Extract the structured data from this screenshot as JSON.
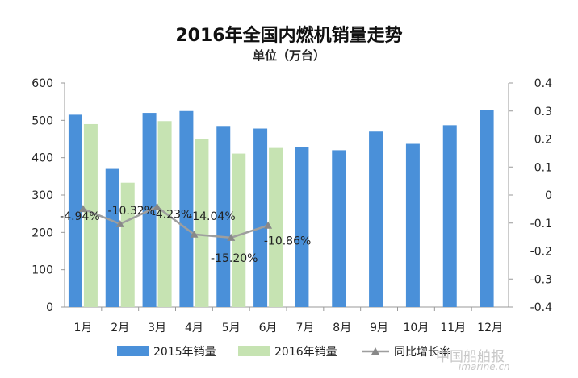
{
  "chart_data": {
    "type": "bar",
    "title": "2016年全国内燃机销量走势",
    "subtitle": "单位（万台）",
    "categories": [
      "1月",
      "2月",
      "3月",
      "4月",
      "5月",
      "6月",
      "7月",
      "8月",
      "9月",
      "10月",
      "11月",
      "12月"
    ],
    "series": [
      {
        "name": "2015年销量",
        "kind": "bar",
        "axis": "left",
        "color": "#4a90d9",
        "values": [
          515,
          370,
          520,
          525,
          485,
          478,
          428,
          420,
          470,
          437,
          487,
          527
        ]
      },
      {
        "name": "2016年销量",
        "kind": "bar",
        "axis": "left",
        "color": "#c6e3b2",
        "values": [
          490,
          333,
          498,
          451,
          411,
          426,
          null,
          null,
          null,
          null,
          null,
          null
        ]
      },
      {
        "name": "同比增长率",
        "kind": "line",
        "axis": "right",
        "color": "#9e9e9e",
        "values": [
          -0.0494,
          -0.1032,
          -0.0423,
          -0.1404,
          -0.152,
          -0.1086,
          null,
          null,
          null,
          null,
          null,
          null
        ],
        "labels": [
          "-4.94%",
          "-10.32%",
          "-4.23%",
          "-14.04%",
          "-15.20%",
          "-10.86%"
        ]
      }
    ],
    "y_left": {
      "min": 0,
      "max": 600,
      "ticks": [
        "0",
        "100",
        "200",
        "300",
        "400",
        "500",
        "600"
      ]
    },
    "y_right": {
      "min": -0.4,
      "max": 0.4,
      "ticks": [
        "0.4",
        "0.3",
        "0.2",
        "0.1",
        "0",
        "-0.1",
        "-0.2",
        "-0.3",
        "-0.4"
      ]
    },
    "grid": false,
    "legend_position": "bottom"
  },
  "watermark": {
    "text": "中国船舶报",
    "url": "imarine.cn"
  }
}
